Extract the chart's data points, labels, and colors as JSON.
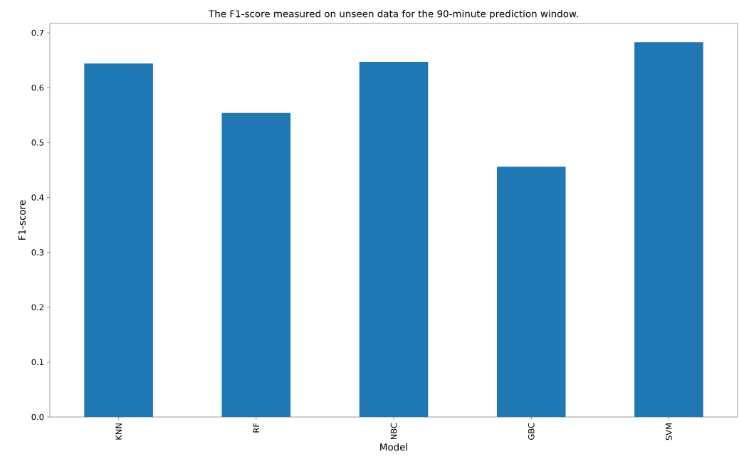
{
  "chart_data": {
    "type": "bar",
    "title": "The F1-score measured on unseen data for the 90-minute prediction window.",
    "xlabel": "Model",
    "ylabel": "F1-score",
    "categories": [
      "KNN",
      "RF",
      "NBC",
      "GBC",
      "SVM"
    ],
    "values": [
      0.644,
      0.554,
      0.647,
      0.456,
      0.683
    ],
    "color": "#1f77b4",
    "ylim": [
      0,
      0.717
    ],
    "yticks": [
      {
        "value": 0,
        "label": "0.0"
      },
      0.1,
      0.2,
      0.3,
      0.4,
      0.5,
      0.6,
      0.7
    ]
  }
}
